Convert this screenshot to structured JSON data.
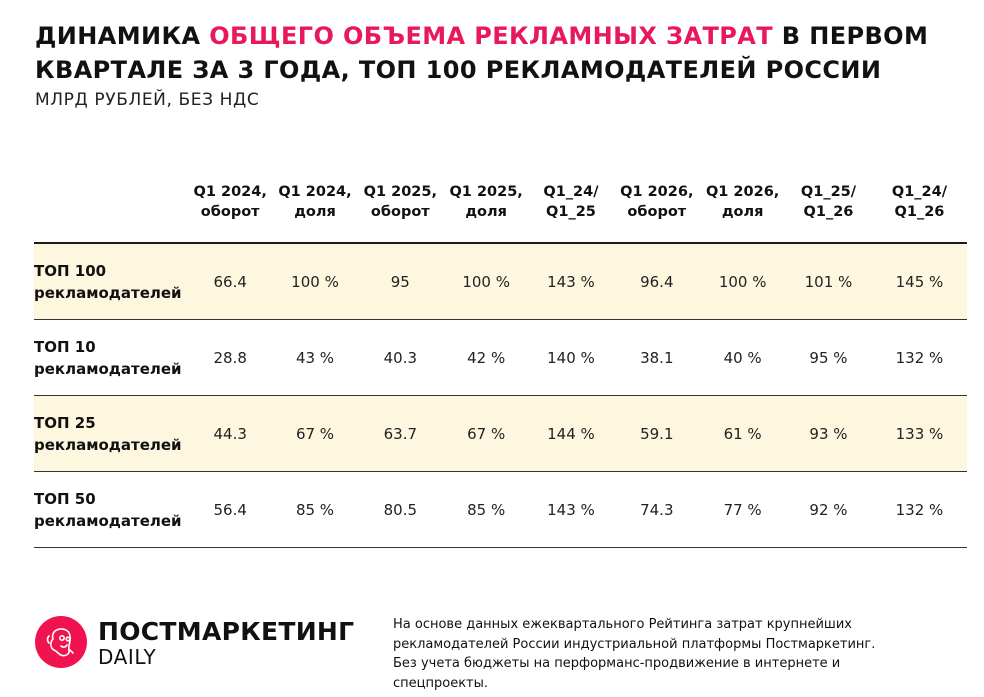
{
  "title": {
    "part1": "ДИНАМИКА ",
    "accent": "ОБЩЕГО ОБЪЕМА РЕКЛАМНЫХ ЗАТРАТ",
    "part2": " В ПЕРВОМ",
    "line2": "КВАРТАЛЕ ЗА 3 ГОДА, ТОП 100 РЕКЛАМОДАТЕЛЕЙ РОССИИ"
  },
  "subtitle": "МЛРД РУБЛЕЙ, БЕЗ НДС",
  "colors": {
    "accent": "#e8195a",
    "row_shade": "#fdf7e0",
    "logo": "#f0134f"
  },
  "table": {
    "headers": [
      [
        "",
        ""
      ],
      [
        "Q1 2024,",
        "оборот"
      ],
      [
        "Q1 2024,",
        "доля"
      ],
      [
        "Q1 2025,",
        "оборот"
      ],
      [
        "Q1 2025,",
        "доля"
      ],
      [
        "Q1_24/",
        "Q1_25"
      ],
      [
        "Q1 2026,",
        "оборот"
      ],
      [
        "Q1 2026,",
        "доля"
      ],
      [
        "Q1_25/",
        "Q1_26"
      ],
      [
        "Q1_24/",
        "Q1_26"
      ]
    ],
    "rows": [
      {
        "label": [
          "ТОП 100",
          "рекламодателей"
        ],
        "shaded": true,
        "cells": [
          "66.4",
          "100 %",
          "95",
          "100 %",
          "143 %",
          "96.4",
          "100 %",
          "101 %",
          "145 %"
        ]
      },
      {
        "label": [
          "ТОП 10",
          "рекламодателей"
        ],
        "shaded": false,
        "cells": [
          "28.8",
          "43 %",
          "40.3",
          "42 %",
          "140 %",
          "38.1",
          "40 %",
          "95 %",
          "132 %"
        ]
      },
      {
        "label": [
          "ТОП 25",
          "рекламодателей"
        ],
        "shaded": true,
        "cells": [
          "44.3",
          "67 %",
          "63.7",
          "67 %",
          "144 %",
          "59.1",
          "61 %",
          "93 %",
          "133 %"
        ]
      },
      {
        "label": [
          "ТОП 50",
          "рекламодателей"
        ],
        "shaded": false,
        "cells": [
          "56.4",
          "85 %",
          "80.5",
          "85 %",
          "143 %",
          "74.3",
          "77 %",
          "92 %",
          "132 %"
        ]
      }
    ]
  },
  "logo": {
    "name": "ПОСТМАРКЕТИНГ",
    "sub": "DAILY",
    "icon": "face-doodle-icon"
  },
  "footnote": [
    "На основе данных ежеквартального Рейтинга затрат крупнейших",
    "рекламодателей России индустриальной платформы Постмаркетинг.",
    "Без учета бюджеты на перформанс-продвижение в интернете и",
    "спецпроекты."
  ]
}
